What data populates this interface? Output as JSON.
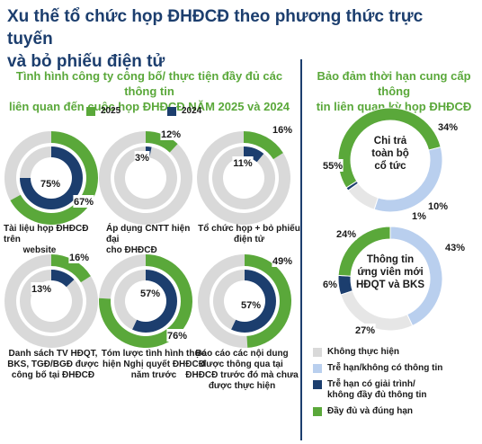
{
  "header": {
    "title_line1": "Xu thế tổ chức họp ĐHĐCĐ theo phương thức trực tuyến",
    "title_line2": "và bỏ phiếu điện tử"
  },
  "left_panel": {
    "subtitle_line1": "Tình hình công ty công bố/ thực tiện đầy đủ các thông tin",
    "subtitle_line2": "liên quan đến cuộc họp ĐHĐCĐ NĂM 2025 và 2024",
    "legend": [
      {
        "label": "2025",
        "color": "#5aa83a"
      },
      {
        "label": "2024",
        "color": "#1c3e6e"
      }
    ]
  },
  "right_panel": {
    "subtitle_line1": "Bảo đảm thời hạn cung cấp thông",
    "subtitle_line2": "tin liên quan kỳ họp ĐHĐCĐ",
    "legend": [
      {
        "label": "Không thực hiện",
        "color": "#d9d9d9"
      },
      {
        "label": "Trễ hạn/không có thông tin",
        "color": "#b9cfee"
      },
      {
        "label": "Trễ hạn có giải trình/ không đầy đủ thông tin",
        "label_line1": "Trễ hạn có giải trình/",
        "label_line2": "không đầy đủ thông tin",
        "color": "#1c3e6e"
      },
      {
        "label": "Đầy đủ và đúng hạn",
        "color": "#5aa83a"
      }
    ]
  },
  "chart_data": [
    {
      "type": "pie",
      "chart": "nested-donut",
      "category_line1": "Tài liệu họp ĐHĐCĐ trên",
      "category_line2": "website",
      "value_2025": 67,
      "value_2024": 75,
      "label_2025": "67%",
      "label_2024": "75%",
      "color_2025": "#5aa83a",
      "color_2024": "#1c3e6e",
      "rest_color": "#d9d9d9"
    },
    {
      "type": "pie",
      "chart": "nested-donut",
      "category_line1": "Áp dụng CNTT hiện đại",
      "category_line2": "cho ĐHĐCĐ",
      "value_2025": 12,
      "value_2024": 3,
      "label_2025": "12%",
      "label_2024": "3%",
      "color_2025": "#5aa83a",
      "color_2024": "#1c3e6e",
      "rest_color": "#d9d9d9"
    },
    {
      "type": "pie",
      "chart": "nested-donut",
      "category_line1": "Tổ chức họp + bỏ phiếu",
      "category_line2": "điện tử",
      "value_2025": 16,
      "value_2024": 11,
      "label_2025": "16%",
      "label_2024": "11%",
      "color_2025": "#5aa83a",
      "color_2024": "#1c3e6e",
      "rest_color": "#d9d9d9"
    },
    {
      "type": "pie",
      "chart": "nested-donut",
      "category_line1": "Danh sách TV HĐQT,",
      "category_line2": "BKS, TGĐ/BGĐ được",
      "category_line3": "công bố tại ĐHĐCĐ",
      "value_2025": 16,
      "value_2024": 13,
      "label_2025": "16%",
      "label_2024": "13%",
      "color_2025": "#5aa83a",
      "color_2024": "#1c3e6e",
      "rest_color": "#d9d9d9"
    },
    {
      "type": "pie",
      "chart": "nested-donut",
      "category_line1": "Tóm lược tình hình thực",
      "category_line2": "hiện Nghị quyết ĐHĐCĐ",
      "category_line3": "năm trước",
      "value_2025": 76,
      "value_2024": 57,
      "label_2025": "76%",
      "label_2024": "57%",
      "color_2025": "#5aa83a",
      "color_2024": "#1c3e6e",
      "rest_color": "#d9d9d9"
    },
    {
      "type": "pie",
      "chart": "nested-donut",
      "category_line1": "Báo cáo các nội dung",
      "category_line2": "được thông qua tại",
      "category_line3": "ĐHĐCĐ trước đó mà chưa",
      "category_line4": "được thực hiện",
      "value_2025": 49,
      "value_2024": 57,
      "label_2025": "49%",
      "label_2024": "57%",
      "color_2025": "#5aa83a",
      "color_2024": "#1c3e6e",
      "rest_color": "#d9d9d9"
    },
    {
      "type": "pie",
      "chart": "donut",
      "center_line1": "Chi trả",
      "center_line2": "toàn bộ",
      "center_line3": "cổ tức",
      "categories": [
        "Đầy đủ và đúng hạn",
        "Trễ hạn/không có thông tin",
        "Không thực hiện",
        "Trễ hạn có giải trình/ không đầy đủ thông tin"
      ],
      "values": [
        55,
        34,
        10,
        1
      ],
      "labels": [
        "55%",
        "34%",
        "10%",
        "1%"
      ],
      "colors": [
        "#5aa83a",
        "#b9cfee",
        "#e6e6e6",
        "#1c3e6e"
      ]
    },
    {
      "type": "pie",
      "chart": "donut",
      "center_line1": "Thông tin",
      "center_line2": "ứng viên mới",
      "center_line3": "HĐQT và BKS",
      "categories": [
        "Trễ hạn/không có thông tin",
        "Không thực hiện",
        "Trễ hạn có giải trình/ không đầy đủ thông tin",
        "Đầy đủ và đúng hạn"
      ],
      "values": [
        43,
        27,
        6,
        24
      ],
      "labels": [
        "43%",
        "27%",
        "6%",
        "24%"
      ],
      "colors": [
        "#b9cfee",
        "#e6e6e6",
        "#1c3e6e",
        "#5aa83a"
      ]
    }
  ]
}
